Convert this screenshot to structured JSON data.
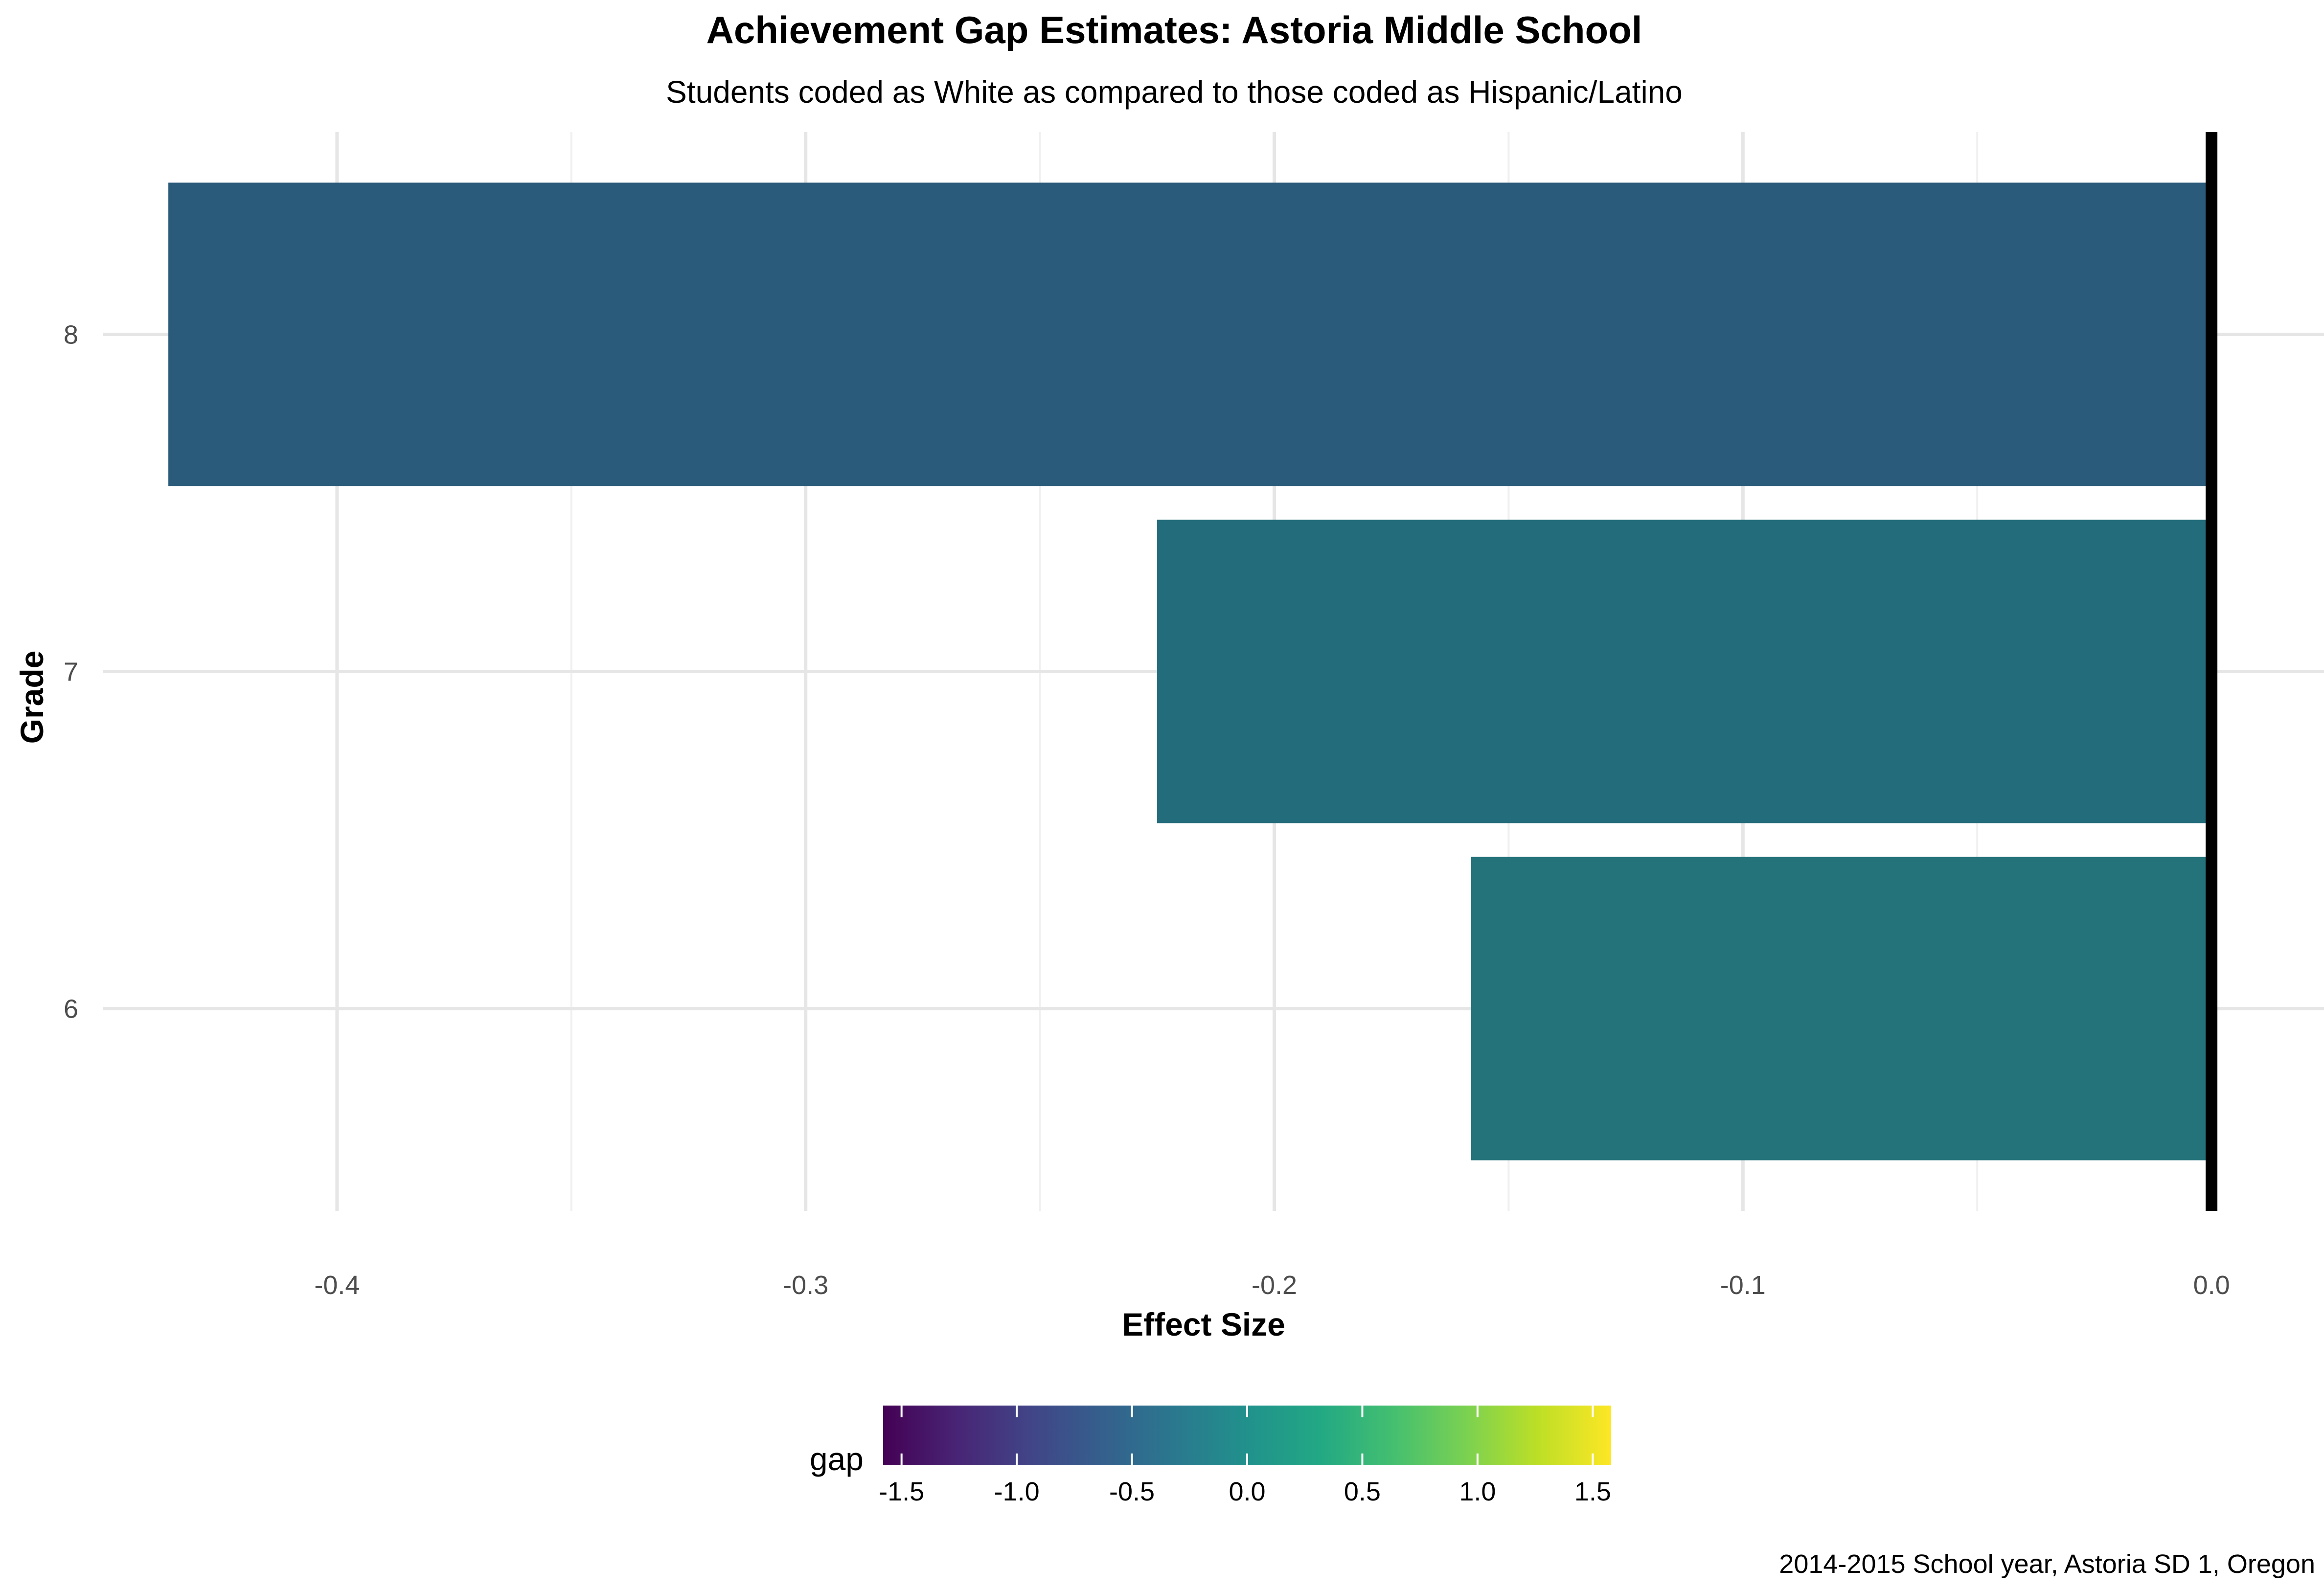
{
  "chart_data": {
    "type": "bar",
    "orientation": "horizontal",
    "title": "Achievement Gap Estimates: Astoria Middle School",
    "subtitle": "Students coded as White as compared to those coded as Hispanic/Latino",
    "xlabel": "Effect Size",
    "ylabel": "Grade",
    "caption": "2014-2015 School year, Astoria SD 1, Oregon",
    "categories": [
      "6",
      "7",
      "8"
    ],
    "values": [
      -0.158,
      -0.225,
      -0.436
    ],
    "bar_colors": [
      "#24727A",
      "#236C7B",
      "#2B5B7A"
    ],
    "xlim": [
      -0.45,
      0.024
    ],
    "x_ticks": [
      -0.4,
      -0.3,
      -0.2,
      -0.1,
      0.0
    ],
    "x_tick_labels": [
      "-0.4",
      "-0.3",
      "-0.2",
      "-0.1",
      "0.0"
    ],
    "reference_line_x": 0.0,
    "grid": true,
    "legend": {
      "title": "gap",
      "position": "bottom",
      "scale": "viridis",
      "range": [
        -1.58,
        1.58
      ],
      "ticks": [
        -1.5,
        -1.0,
        -0.5,
        0.0,
        0.5,
        1.0,
        1.5
      ],
      "tick_labels": [
        "-1.5",
        "-1.0",
        "-0.5",
        "0.0",
        "0.5",
        "1.0",
        "1.5"
      ],
      "palette": [
        "#440154",
        "#482475",
        "#414487",
        "#355F8D",
        "#2A788E",
        "#21918C",
        "#22A884",
        "#44BF70",
        "#7AD151",
        "#BDDF26",
        "#FDE725"
      ]
    }
  }
}
